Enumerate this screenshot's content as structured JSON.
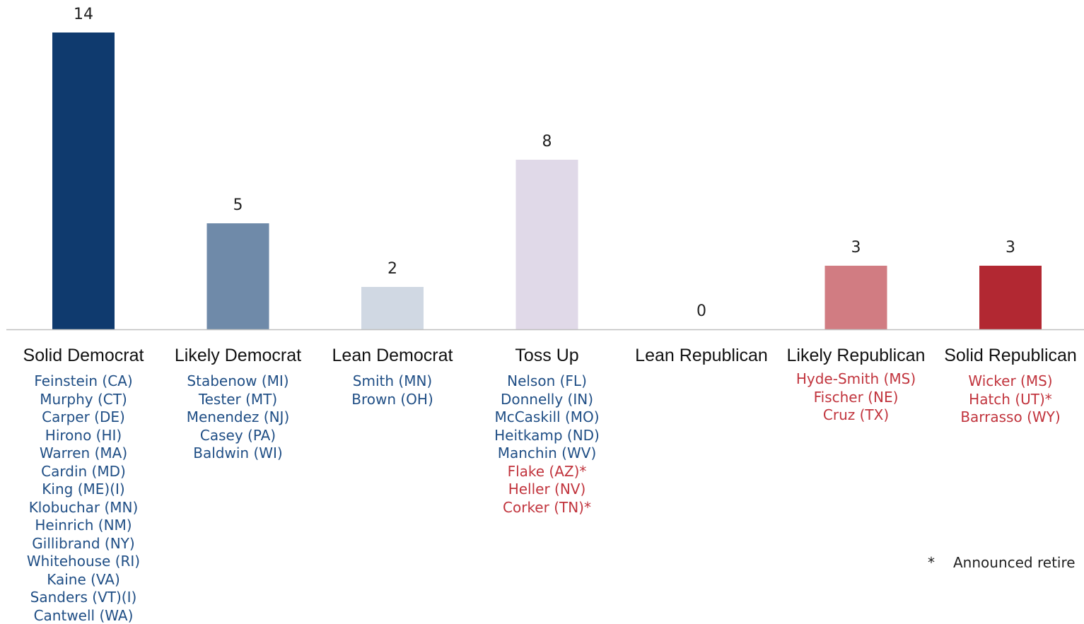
{
  "chart_data": {
    "type": "bar",
    "title": "",
    "xlabel": "",
    "ylabel": "",
    "ylim": [
      0,
      14
    ],
    "grid": false,
    "categories": [
      "Solid Democrat",
      "Likely Democrat",
      "Lean Democrat",
      "Toss Up",
      "Lean Republican",
      "Likely Republican",
      "Solid Republican"
    ],
    "values": [
      14,
      5,
      2,
      8,
      0,
      3,
      3
    ],
    "bar_colors": [
      "#0f3a6e",
      "#6f8aa9",
      "#d0d8e3",
      "#e0d9e8",
      "#ffffff",
      "#d17c82",
      "#b22832"
    ],
    "data_labels": [
      "14",
      "5",
      "2",
      "8",
      "0",
      "3",
      "3"
    ],
    "senators": [
      [
        {
          "name": "Feinstein (CA)",
          "party": "D"
        },
        {
          "name": "Murphy (CT)",
          "party": "D"
        },
        {
          "name": "Carper (DE)",
          "party": "D"
        },
        {
          "name": "Hirono (HI)",
          "party": "D"
        },
        {
          "name": "Warren (MA)",
          "party": "D"
        },
        {
          "name": "Cardin (MD)",
          "party": "D"
        },
        {
          "name": "King (ME)(I)",
          "party": "D"
        },
        {
          "name": "Klobuchar (MN)",
          "party": "D"
        },
        {
          "name": "Heinrich (NM)",
          "party": "D"
        },
        {
          "name": "Gillibrand (NY)",
          "party": "D"
        },
        {
          "name": "Whitehouse (RI)",
          "party": "D"
        },
        {
          "name": "Kaine (VA)",
          "party": "D"
        },
        {
          "name": "Sanders (VT)(I)",
          "party": "D"
        },
        {
          "name": "Cantwell (WA)",
          "party": "D"
        }
      ],
      [
        {
          "name": "Stabenow (MI)",
          "party": "D"
        },
        {
          "name": "Tester (MT)",
          "party": "D"
        },
        {
          "name": "Menendez (NJ)",
          "party": "D"
        },
        {
          "name": "Casey (PA)",
          "party": "D"
        },
        {
          "name": "Baldwin (WI)",
          "party": "D"
        }
      ],
      [
        {
          "name": "Smith (MN)",
          "party": "D"
        },
        {
          "name": "Brown (OH)",
          "party": "D"
        }
      ],
      [
        {
          "name": "Nelson (FL)",
          "party": "D"
        },
        {
          "name": "Donnelly (IN)",
          "party": "D"
        },
        {
          "name": "McCaskill (MO)",
          "party": "D"
        },
        {
          "name": "Heitkamp (ND)",
          "party": "D"
        },
        {
          "name": "Manchin (WV)",
          "party": "D"
        },
        {
          "name": "Flake (AZ)*",
          "party": "R"
        },
        {
          "name": "Heller (NV)",
          "party": "R"
        },
        {
          "name": "Corker (TN)*",
          "party": "R"
        }
      ],
      [],
      [
        {
          "name": "Hyde-Smith (MS)",
          "party": "R"
        },
        {
          "name": "Fischer (NE)",
          "party": "R"
        },
        {
          "name": "Cruz (TX)",
          "party": "R"
        }
      ],
      [
        {
          "name": "Wicker (MS)",
          "party": "R"
        },
        {
          "name": "Hatch (UT)*",
          "party": "R"
        },
        {
          "name": "Barrasso (WY)",
          "party": "R"
        }
      ]
    ],
    "party_colors": {
      "D": "#1f4e85",
      "R": "#c1343d"
    },
    "footnote": {
      "symbol": "*",
      "text": "Announced retire"
    }
  }
}
